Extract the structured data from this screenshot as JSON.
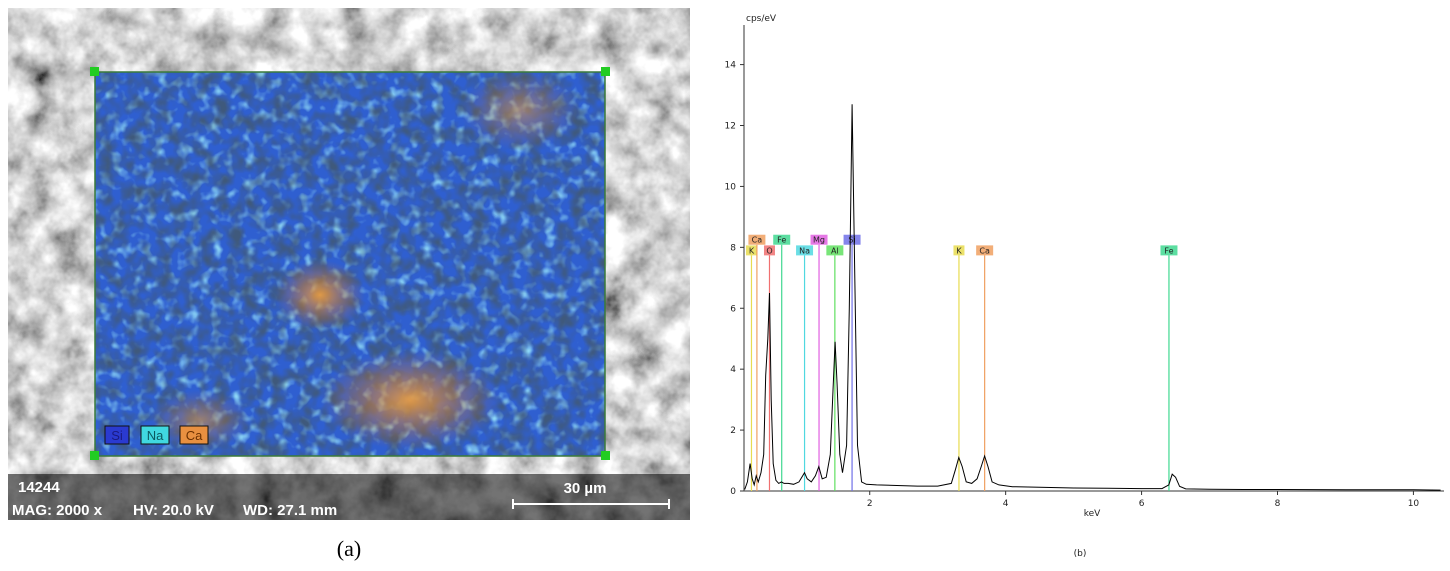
{
  "image_panel": {
    "legend": [
      "Si",
      "Na",
      "Ca"
    ],
    "id": "14244",
    "info": [
      "MAG: 2000 x",
      "HV: 20.0 kV",
      "WD: 27.1 mm"
    ],
    "scale_bar": "30 µm",
    "caption": "(a)"
  },
  "chart_data": {
    "type": "line",
    "ylabel": "cps/eV",
    "xlabel": "keV",
    "caption": "(b)",
    "x": [
      0.16,
      0.2,
      0.24,
      0.27,
      0.3,
      0.33,
      0.36,
      0.4,
      0.44,
      0.47,
      0.5,
      0.525,
      0.55,
      0.58,
      0.62,
      0.66,
      0.7,
      0.74,
      0.8,
      0.88,
      0.96,
      1.0,
      1.04,
      1.08,
      1.14,
      1.2,
      1.25,
      1.3,
      1.36,
      1.42,
      1.46,
      1.49,
      1.52,
      1.56,
      1.6,
      1.66,
      1.7,
      1.74,
      1.78,
      1.82,
      1.88,
      1.95,
      2.1,
      2.4,
      2.7,
      3.0,
      3.2,
      3.26,
      3.31,
      3.36,
      3.42,
      3.5,
      3.58,
      3.64,
      3.69,
      3.74,
      3.8,
      3.9,
      4.1,
      4.5,
      5.0,
      5.5,
      6.0,
      6.3,
      6.4,
      6.45,
      6.5,
      6.56,
      6.65,
      7.0,
      7.5,
      8.0,
      9.0,
      10.0,
      10.4
    ],
    "series": [
      {
        "color": "#000000",
        "values": [
          0.05,
          0.3,
          0.9,
          0.4,
          0.2,
          0.5,
          0.3,
          0.6,
          1.2,
          3.8,
          5.0,
          6.5,
          3.0,
          0.9,
          0.35,
          0.25,
          0.3,
          0.25,
          0.25,
          0.22,
          0.3,
          0.45,
          0.6,
          0.4,
          0.3,
          0.5,
          0.8,
          0.4,
          0.45,
          1.2,
          3.3,
          4.9,
          3.5,
          1.2,
          0.6,
          1.5,
          6.0,
          12.7,
          7.0,
          1.5,
          0.3,
          0.22,
          0.2,
          0.18,
          0.16,
          0.16,
          0.25,
          0.7,
          1.1,
          0.8,
          0.3,
          0.25,
          0.4,
          0.8,
          1.15,
          0.8,
          0.3,
          0.2,
          0.14,
          0.12,
          0.1,
          0.09,
          0.08,
          0.08,
          0.2,
          0.55,
          0.45,
          0.15,
          0.07,
          0.06,
          0.05,
          0.05,
          0.04,
          0.04,
          0.03
        ]
      }
    ],
    "element_lines": [
      {
        "label": "K",
        "energy": 0.26,
        "color": "#e8dc50"
      },
      {
        "label": "Ca",
        "energy": 0.34,
        "color": "#f0a060"
      },
      {
        "label": "O",
        "energy": 0.525,
        "color": "#f07070"
      },
      {
        "label": "Fe",
        "energy": 0.705,
        "color": "#40d890"
      },
      {
        "label": "Na",
        "energy": 1.041,
        "color": "#50d8e0"
      },
      {
        "label": "Mg",
        "energy": 1.254,
        "color": "#e060e0"
      },
      {
        "label": "Al",
        "energy": 1.487,
        "color": "#60e060"
      },
      {
        "label": "Si",
        "energy": 1.74,
        "color": "#7070e8"
      },
      {
        "label": "K",
        "energy": 3.313,
        "color": "#e8dc50"
      },
      {
        "label": "Ca",
        "energy": 3.691,
        "color": "#f0a060"
      },
      {
        "label": "Fe",
        "energy": 6.403,
        "color": "#40d890"
      }
    ],
    "xlim": [
      0.15,
      10.45
    ],
    "ylim": [
      0,
      15.3
    ],
    "xticks": [
      2,
      4,
      6,
      8,
      10
    ],
    "yticks": [
      0,
      2,
      4,
      6,
      8,
      10,
      12,
      14
    ]
  }
}
